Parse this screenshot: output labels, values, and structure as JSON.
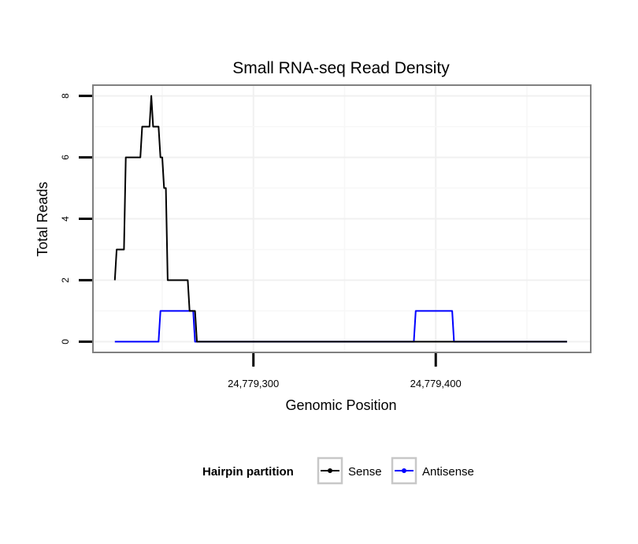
{
  "chart_data": {
    "type": "line",
    "title": "Small RNA-seq Read Density",
    "xlabel": "Genomic Position",
    "ylabel": "Total Reads",
    "xlim": [
      24779212,
      24779485
    ],
    "ylim": [
      -0.35,
      8.35
    ],
    "x_ticks": [
      24779300,
      24779400
    ],
    "x_tick_labels": [
      "24,779,300",
      "24,779,400"
    ],
    "y_ticks": [
      0,
      2,
      4,
      6,
      8
    ],
    "y_tick_labels": [
      "0",
      "2",
      "4",
      "6",
      "8"
    ],
    "grid": true,
    "legend": {
      "title": "Hairpin partition",
      "position": "bottom",
      "entries": [
        "Sense",
        "Antisense"
      ]
    },
    "series": [
      {
        "name": "Sense",
        "color": "#000000",
        "points": [
          [
            24779224,
            2
          ],
          [
            24779225,
            3
          ],
          [
            24779229,
            3
          ],
          [
            24779230,
            6
          ],
          [
            24779238,
            6
          ],
          [
            24779239,
            7
          ],
          [
            24779243,
            7
          ],
          [
            24779244,
            8
          ],
          [
            24779245,
            7
          ],
          [
            24779248,
            7
          ],
          [
            24779249,
            6
          ],
          [
            24779250,
            6
          ],
          [
            24779251,
            5
          ],
          [
            24779252,
            5
          ],
          [
            24779253,
            2
          ],
          [
            24779264,
            2
          ],
          [
            24779265,
            1
          ],
          [
            24779268,
            1
          ],
          [
            24779269,
            0
          ],
          [
            24779472,
            0
          ]
        ]
      },
      {
        "name": "Antisense",
        "color": "#0000ff",
        "points": [
          [
            24779224,
            0
          ],
          [
            24779248,
            0
          ],
          [
            24779249,
            1
          ],
          [
            24779267,
            1
          ],
          [
            24779268,
            0
          ],
          [
            24779388,
            0
          ],
          [
            24779389,
            1
          ],
          [
            24779409,
            1
          ],
          [
            24779410,
            0
          ],
          [
            24779472,
            0
          ]
        ]
      }
    ]
  }
}
